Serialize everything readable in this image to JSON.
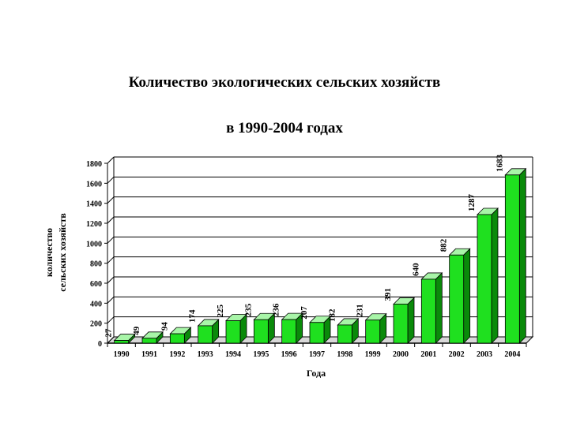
{
  "chart_data": {
    "type": "bar",
    "title_line1": "Количество экологических сельских хозяйств",
    "title_line2": "в  1990-2004 годах",
    "xlabel": "Года",
    "ylabel_line1": "количество",
    "ylabel_line2": "сельских хозяйств",
    "categories": [
      "1990",
      "1991",
      "1992",
      "1993",
      "1994",
      "1995",
      "1996",
      "1997",
      "1998",
      "1999",
      "2000",
      "2001",
      "2002",
      "2003",
      "2004"
    ],
    "values": [
      27,
      49,
      94,
      174,
      225,
      235,
      236,
      207,
      182,
      231,
      391,
      640,
      882,
      1287,
      1683
    ],
    "data_labels": [
      "27",
      "49",
      "94",
      "174",
      "225",
      "235",
      "236",
      "207",
      "182",
      "231",
      "391",
      "640",
      "882",
      "1287",
      "1683"
    ],
    "ylim": [
      0,
      1800
    ],
    "yticks": [
      "0",
      "200",
      "400",
      "600",
      "800",
      "1000",
      "1200",
      "1400",
      "1600",
      "1800"
    ],
    "grid": true,
    "legend": "none",
    "colors": {
      "bar_front": "#1fe01f",
      "bar_top": "#a8f5a8",
      "bar_side": "#0a8a0a",
      "bar_outline": "#000000",
      "gridline": "#000000"
    }
  }
}
